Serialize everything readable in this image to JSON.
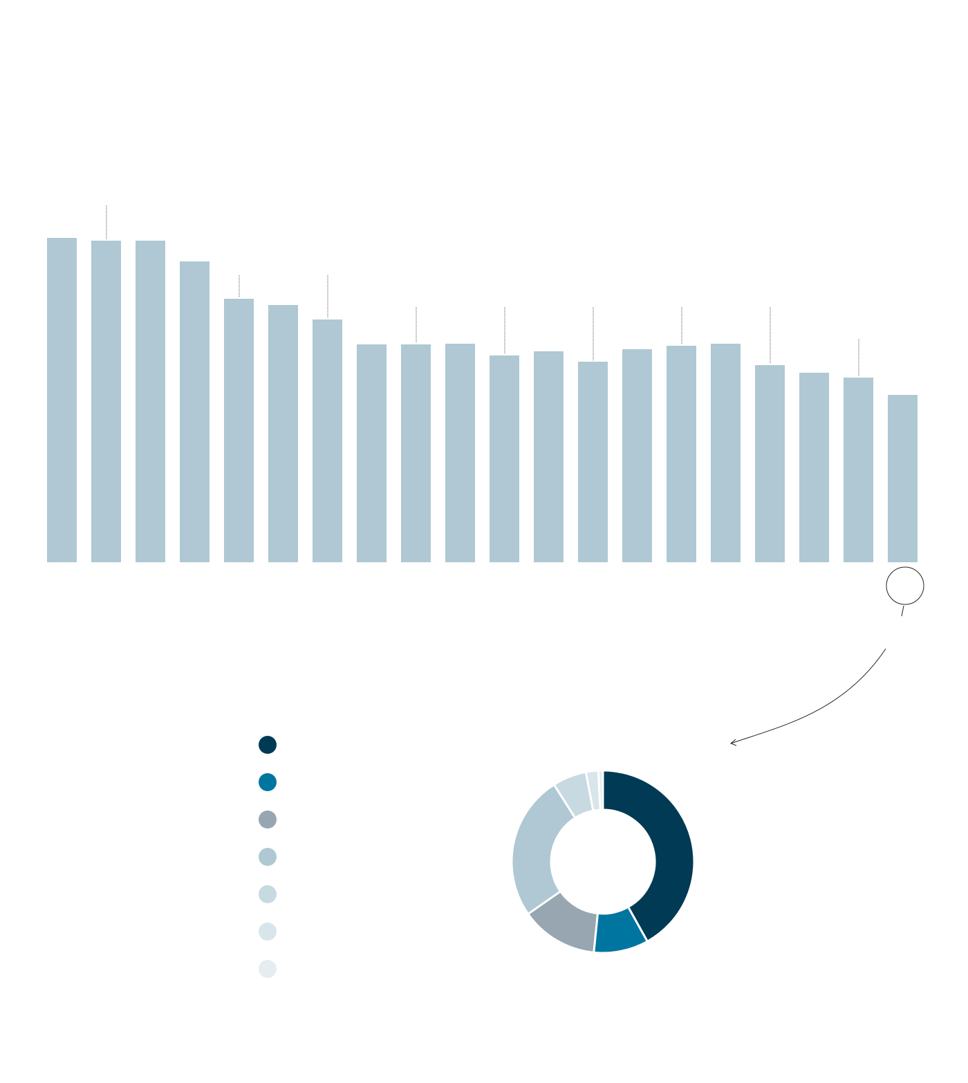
{
  "chart_data": [
    {
      "type": "bar",
      "categories": [
        null,
        null,
        null,
        null,
        null,
        null,
        null,
        null,
        null,
        null,
        null,
        null,
        null,
        null,
        null,
        null,
        null,
        null,
        null,
        null
      ],
      "values": [
        469,
        465,
        465,
        435,
        381,
        372,
        351,
        315,
        315,
        316,
        299,
        305,
        290,
        308,
        313,
        316,
        285,
        274,
        267,
        242
      ],
      "color": "#afc8d3",
      "ylim": [
        0,
        500
      ]
    },
    {
      "type": "pie",
      "categories": [
        null,
        null,
        null,
        null,
        null,
        null,
        null
      ],
      "values": [
        41.9,
        9.7,
        13.7,
        25.7,
        6.0,
        2.2,
        0.8
      ],
      "colors": [
        "#003a54",
        "#0075a0",
        "#97a6b1",
        "#afc8d3",
        "#c7d9e1",
        "#d8e5eb",
        "#e5edf1"
      ]
    }
  ]
}
